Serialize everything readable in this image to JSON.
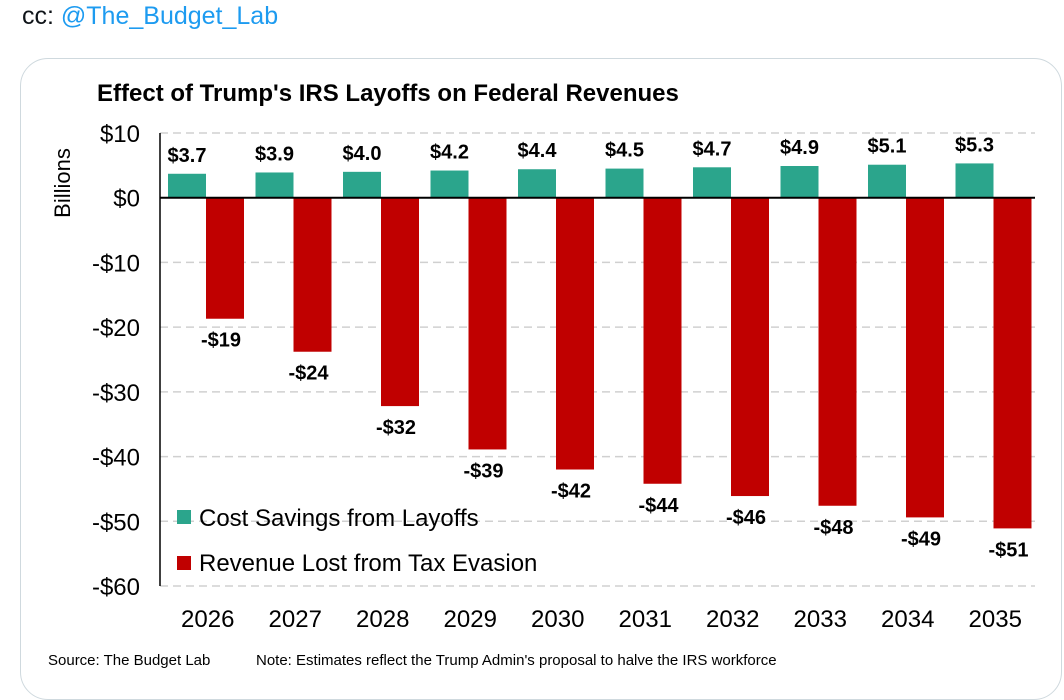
{
  "tweet": {
    "cc_prefix": "cc: ",
    "mention": "@The_Budget_Lab"
  },
  "chart_data": {
    "type": "bar",
    "title": "Effect of Trump's IRS Layoffs on Federal Revenues",
    "ylabel": "Billions",
    "xlabel": "",
    "categories": [
      "2026",
      "2027",
      "2028",
      "2029",
      "2030",
      "2031",
      "2032",
      "2033",
      "2034",
      "2035"
    ],
    "series": [
      {
        "name": "Cost Savings from Layoffs",
        "color": "#2ba58c",
        "values": [
          3.7,
          3.9,
          4.0,
          4.2,
          4.4,
          4.5,
          4.7,
          4.9,
          5.1,
          5.3
        ],
        "labels": [
          "$3.7",
          "$3.9",
          "$4.0",
          "$4.2",
          "$4.4",
          "$4.5",
          "$4.7",
          "$4.9",
          "$5.1",
          "$5.3"
        ]
      },
      {
        "name": "Revenue Lost from Tax Evasion",
        "color": "#c00000",
        "values": [
          -18.7,
          -23.8,
          -32.2,
          -38.9,
          -42.0,
          -44.2,
          -46.1,
          -47.6,
          -49.4,
          -51.1
        ],
        "labels": [
          "-$19",
          "-$24",
          "-$32",
          "-$39",
          "-$42",
          "-$44",
          "-$46",
          "-$48",
          "-$49",
          "-$51"
        ]
      }
    ],
    "ylim": [
      -60,
      10
    ],
    "yticks": [
      10,
      0,
      -10,
      -20,
      -30,
      -40,
      -50,
      -60
    ],
    "ytick_labels": [
      "$10",
      "$0",
      "-$10",
      "-$20",
      "-$30",
      "-$40",
      "-$50",
      "-$60"
    ],
    "grid": "horizontal dashed",
    "legend_position": "bottom-left"
  },
  "footer": {
    "source": "Source: The Budget Lab",
    "note": "Note: Estimates reflect the Trump Admin's proposal to halve the IRS workforce"
  }
}
